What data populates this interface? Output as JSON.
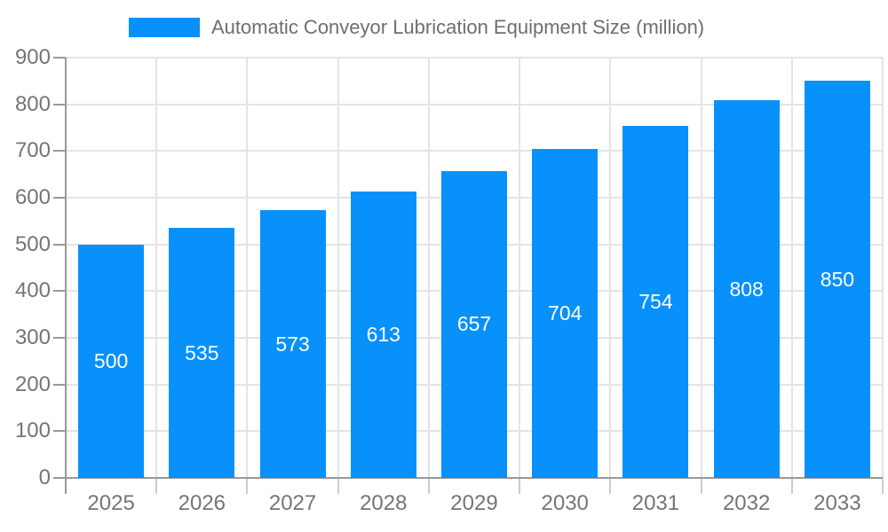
{
  "legend": {
    "label": "Automatic Conveyor Lubrication Equipment Size (million)"
  },
  "colors": {
    "bar": "#0891fb",
    "axis_line": "#999999",
    "grid": "#e4e4e4",
    "x_tick": "#cccccc",
    "axis_text": "#757575",
    "legend_text": "#6e6e6e",
    "bar_label": "#ffffff",
    "background": "#ffffff"
  },
  "chart_data": {
    "type": "bar",
    "title": "Automatic Conveyor Lubrication Equipment Size (million)",
    "categories": [
      "2025",
      "2026",
      "2027",
      "2028",
      "2029",
      "2030",
      "2031",
      "2032",
      "2033"
    ],
    "values": [
      500,
      535,
      573,
      613,
      657,
      704,
      754,
      808,
      850
    ],
    "xlabel": "",
    "ylabel": "",
    "ylim": [
      0,
      900
    ],
    "yticks": [
      0,
      100,
      200,
      300,
      400,
      500,
      600,
      700,
      800,
      900
    ],
    "grid": true,
    "legend_position": "top",
    "bar_labels": "inside-center"
  }
}
